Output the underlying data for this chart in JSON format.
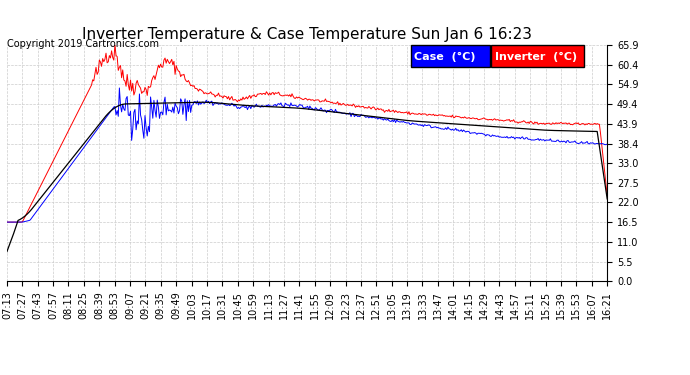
{
  "title": "Inverter Temperature & Case Temperature Sun Jan 6 16:23",
  "copyright": "Copyright 2019 Cartronics.com",
  "background_color": "#ffffff",
  "plot_bg_color": "#ffffff",
  "grid_color": "#cccccc",
  "ylim": [
    0.0,
    65.9
  ],
  "yticks": [
    0.0,
    5.5,
    11.0,
    16.5,
    22.0,
    27.5,
    33.0,
    38.4,
    43.9,
    49.4,
    54.9,
    60.4,
    65.9
  ],
  "xtick_labels": [
    "07:13",
    "07:27",
    "07:43",
    "07:57",
    "08:11",
    "08:25",
    "08:39",
    "08:53",
    "09:07",
    "09:21",
    "09:35",
    "09:49",
    "10:03",
    "10:17",
    "10:31",
    "10:45",
    "10:59",
    "11:13",
    "11:27",
    "11:41",
    "11:55",
    "12:09",
    "12:23",
    "12:37",
    "12:51",
    "13:05",
    "13:19",
    "13:33",
    "13:47",
    "14:01",
    "14:15",
    "14:29",
    "14:43",
    "14:57",
    "15:11",
    "15:25",
    "15:39",
    "15:53",
    "16:07",
    "16:21"
  ],
  "inverter_color": "#ff0000",
  "case_color": "#0000ff",
  "black_color": "#000000",
  "legend_case_bg": "#0000ff",
  "legend_inverter_bg": "#ff0000",
  "legend_text_color": "#ffffff",
  "title_fontsize": 11,
  "copyright_fontsize": 7,
  "tick_fontsize": 7,
  "legend_fontsize": 8
}
